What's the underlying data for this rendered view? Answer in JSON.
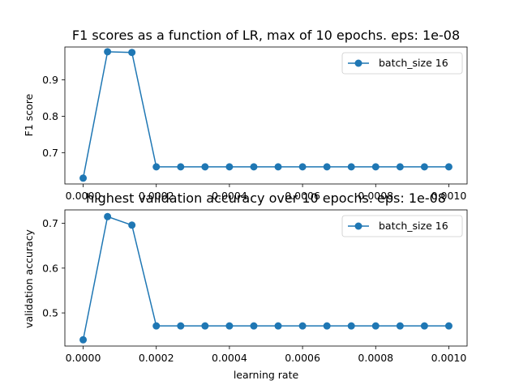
{
  "chart_data": [
    {
      "type": "line",
      "title": "F1 scores as a function of LR, max of 10 epochs. eps: 1e-08",
      "xlabel": "",
      "ylabel": "F1 score",
      "xlim": [
        -5e-05,
        0.00105
      ],
      "ylim": [
        0.614,
        0.99
      ],
      "xticks": [
        "0.0000",
        "0.0002",
        "0.0004",
        "0.0006",
        "0.0008",
        "0.0010"
      ],
      "xtick_values": [
        0,
        0.0002,
        0.0004,
        0.0006,
        0.0008,
        0.001
      ],
      "yticks": [
        "0.7",
        "0.8",
        "0.9"
      ],
      "ytick_values": [
        0.7,
        0.8,
        0.9
      ],
      "legend": "top-right",
      "grid": false,
      "series": [
        {
          "name": "batch_size 16",
          "color": "#1f77b4",
          "x": [
            0,
            6.67e-05,
            0.0001333,
            0.0002,
            0.0002667,
            0.0003333,
            0.0004,
            0.0004667,
            0.0005333,
            0.0006,
            0.0006667,
            0.0007333,
            0.0008,
            0.0008667,
            0.0009333,
            0.001
          ],
          "y": [
            0.63,
            0.977,
            0.975,
            0.661,
            0.661,
            0.661,
            0.661,
            0.661,
            0.661,
            0.661,
            0.661,
            0.661,
            0.661,
            0.661,
            0.661,
            0.661
          ]
        }
      ]
    },
    {
      "type": "line",
      "title": "highest validation accuracy over 10 epochs. eps: 1e-08",
      "xlabel": "learning rate",
      "ylabel": "validation accuracy",
      "xlim": [
        -5e-05,
        0.00105
      ],
      "ylim": [
        0.426,
        0.73
      ],
      "xticks": [
        "0.0000",
        "0.0002",
        "0.0004",
        "0.0006",
        "0.0008",
        "0.0010"
      ],
      "xtick_values": [
        0,
        0.0002,
        0.0004,
        0.0006,
        0.0008,
        0.001
      ],
      "yticks": [
        "0.5",
        "0.6",
        "0.7"
      ],
      "ytick_values": [
        0.5,
        0.6,
        0.7
      ],
      "legend": "top-right",
      "grid": false,
      "series": [
        {
          "name": "batch_size 16",
          "color": "#1f77b4",
          "x": [
            0,
            6.67e-05,
            0.0001333,
            0.0002,
            0.0002667,
            0.0003333,
            0.0004,
            0.0004667,
            0.0005333,
            0.0006,
            0.0006667,
            0.0007333,
            0.0008,
            0.0008667,
            0.0009333,
            0.001
          ],
          "y": [
            0.44,
            0.715,
            0.696,
            0.471,
            0.471,
            0.471,
            0.471,
            0.471,
            0.471,
            0.471,
            0.471,
            0.471,
            0.471,
            0.471,
            0.471,
            0.471
          ]
        }
      ]
    }
  ]
}
